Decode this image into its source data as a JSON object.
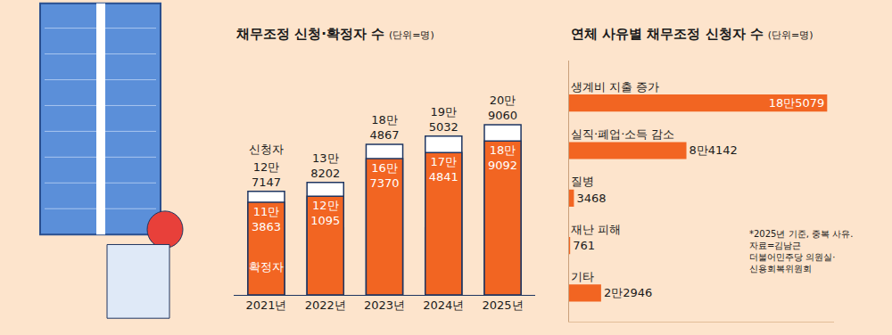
{
  "chart_data": [
    {
      "type": "bar",
      "title": "채무조정 신청·확정자 수",
      "subtitle": "(단위=명)",
      "categories": [
        "2021년",
        "2022년",
        "2023년",
        "2024년",
        "2025년"
      ],
      "series": [
        {
          "name": "신청자",
          "color": "#ffffff",
          "values": [
            127147,
            138202,
            184867,
            195032,
            209060
          ],
          "value_labels": [
            "12만 7147",
            "13만 8202",
            "18만 4867",
            "19만 5032",
            "20만 9060"
          ]
        },
        {
          "name": "확정자",
          "color": "#f26522",
          "values": [
            113863,
            121095,
            167370,
            174841,
            189092
          ],
          "value_labels": [
            "11만 3863",
            "12만 1095",
            "16만 7370",
            "17만 4841",
            "18만 9092"
          ]
        }
      ],
      "stacked": false,
      "data_labels": true,
      "tick_labels": "x",
      "grid": false,
      "ylim": [
        0,
        280000
      ],
      "yticks": []
    },
    {
      "type": "bar",
      "orientation": "horizontal",
      "title": "연체 사유별 채무조정 신청자 수",
      "subtitle": "(단위=명)",
      "categories": [
        "생계비 지출 증가",
        "실직·폐업·소득 감소",
        "질병",
        "재난 피해",
        "기타"
      ],
      "values": [
        185079,
        84142,
        3468,
        761,
        22946
      ],
      "value_labels": [
        "18만5079",
        "8만4142",
        "3468",
        "761",
        "2만2946"
      ],
      "color": "#f26522",
      "xlim": [
        0,
        190000
      ],
      "xticks": [],
      "tick_labels": false,
      "data_labels": true,
      "grid": false,
      "note": [
        "*2025년 기준, 중복 사유.",
        "자료=김남근",
        "더불어민주당 의원실·",
        "신용회복위원회"
      ]
    }
  ]
}
